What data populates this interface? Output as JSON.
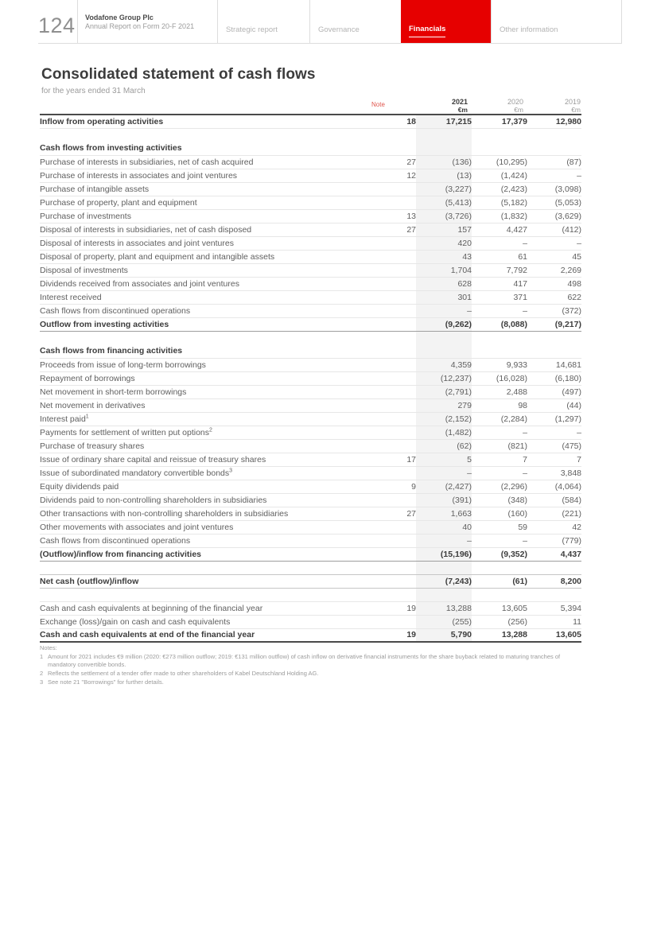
{
  "header": {
    "page_number": "124",
    "brand": {
      "line1": "Vodafone Group Plc",
      "line2": "Annual Report on Form 20-F 2021"
    },
    "tabs": [
      {
        "label": "Strategic report",
        "active": false
      },
      {
        "label": "Governance",
        "active": false
      },
      {
        "label": "Financials",
        "active": true
      },
      {
        "label": "Other information",
        "active": false
      }
    ]
  },
  "title": "Consolidated statement of cash flows",
  "subtitle": "for the years ended 31 March",
  "colors": {
    "accent_red": "#e60000",
    "note_reference_red": "#e0564d",
    "column_band_gray": "#f3f3f3"
  },
  "table": {
    "note_header": "Note",
    "columns": [
      {
        "year": "2021",
        "unit": "€m"
      },
      {
        "year": "2020",
        "unit": "€m"
      },
      {
        "year": "2019",
        "unit": "€m"
      }
    ],
    "rows": [
      {
        "label": "Inflow from operating activities",
        "note": "18",
        "v1": "17,215",
        "v2": "17,379",
        "v3": "12,980",
        "style": "bold",
        "border": "light"
      },
      {
        "style": "spacer",
        "border": "none"
      },
      {
        "label": "Cash flows from investing activities",
        "style": "section",
        "border": "light"
      },
      {
        "label": "Purchase of interests in subsidiaries, net of cash acquired",
        "note": "27",
        "v1": "(136)",
        "v2": "(10,295)",
        "v3": "(87)",
        "style": "normal",
        "border": "light"
      },
      {
        "label": "Purchase of interests in associates and joint ventures",
        "note": "12",
        "v1": "(13)",
        "v2": "(1,424)",
        "v3": "–",
        "style": "normal",
        "border": "light"
      },
      {
        "label": "Purchase of intangible assets",
        "note": "",
        "v1": "(3,227)",
        "v2": "(2,423)",
        "v3": "(3,098)",
        "style": "normal",
        "border": "light"
      },
      {
        "label": "Purchase of property, plant and equipment",
        "note": "",
        "v1": "(5,413)",
        "v2": "(5,182)",
        "v3": "(5,053)",
        "style": "normal",
        "border": "light"
      },
      {
        "label": "Purchase of investments",
        "note": "13",
        "v1": "(3,726)",
        "v2": "(1,832)",
        "v3": "(3,629)",
        "style": "normal",
        "border": "light"
      },
      {
        "label": "Disposal of interests in subsidiaries, net of cash disposed",
        "note": "27",
        "v1": "157",
        "v2": "4,427",
        "v3": "(412)",
        "style": "normal",
        "border": "light"
      },
      {
        "label": "Disposal of interests in associates and joint ventures",
        "note": "",
        "v1": "420",
        "v2": "–",
        "v3": "–",
        "style": "normal",
        "border": "light"
      },
      {
        "label": "Disposal of property, plant and equipment and intangible assets",
        "note": "",
        "v1": "43",
        "v2": "61",
        "v3": "45",
        "style": "normal",
        "border": "light"
      },
      {
        "label": "Disposal of investments",
        "note": "",
        "v1": "1,704",
        "v2": "7,792",
        "v3": "2,269",
        "style": "normal",
        "border": "light"
      },
      {
        "label": "Dividends received from associates and joint ventures",
        "note": "",
        "v1": "628",
        "v2": "417",
        "v3": "498",
        "style": "normal",
        "border": "light"
      },
      {
        "label": "Interest received",
        "note": "",
        "v1": "301",
        "v2": "371",
        "v3": "622",
        "style": "normal",
        "border": "light"
      },
      {
        "label": "Cash flows from discontinued operations",
        "note": "",
        "v1": "–",
        "v2": "–",
        "v3": "(372)",
        "style": "normal",
        "border": "light"
      },
      {
        "label": "Outflow from investing activities",
        "note": "",
        "v1": "(9,262)",
        "v2": "(8,088)",
        "v3": "(9,217)",
        "style": "bold",
        "border": "medium"
      },
      {
        "style": "spacer",
        "border": "none"
      },
      {
        "label": "Cash flows from financing activities",
        "style": "section",
        "border": "light"
      },
      {
        "label": "Proceeds from issue of long-term borrowings",
        "note": "",
        "v1": "4,359",
        "v2": "9,933",
        "v3": "14,681",
        "style": "normal",
        "border": "light"
      },
      {
        "label": "Repayment of borrowings",
        "note": "",
        "v1": "(12,237)",
        "v2": "(16,028)",
        "v3": "(6,180)",
        "style": "normal",
        "border": "light"
      },
      {
        "label": "Net movement in short-term borrowings",
        "note": "",
        "v1": "(2,791)",
        "v2": "2,488",
        "v3": "(497)",
        "style": "normal",
        "border": "light"
      },
      {
        "label": "Net movement in derivatives",
        "note": "",
        "v1": "279",
        "v2": "98",
        "v3": "(44)",
        "style": "normal",
        "border": "light"
      },
      {
        "label": "Interest paid",
        "sup": "1",
        "note": "",
        "v1": "(2,152)",
        "v2": "(2,284)",
        "v3": "(1,297)",
        "style": "normal",
        "border": "light"
      },
      {
        "label": "Payments for settlement of written put options",
        "sup": "2",
        "note": "",
        "v1": "(1,482)",
        "v2": "–",
        "v3": "–",
        "style": "normal",
        "border": "light"
      },
      {
        "label": "Purchase of treasury shares",
        "note": "",
        "v1": "(62)",
        "v2": "(821)",
        "v3": "(475)",
        "style": "normal",
        "border": "light"
      },
      {
        "label": "Issue of ordinary share capital and reissue of treasury shares",
        "note": "17",
        "v1": "5",
        "v2": "7",
        "v3": "7",
        "style": "normal",
        "border": "light"
      },
      {
        "label": "Issue of subordinated mandatory convertible bonds",
        "sup": "3",
        "note": "",
        "v1": "–",
        "v2": "–",
        "v3": "3,848",
        "style": "normal",
        "border": "light"
      },
      {
        "label": "Equity dividends paid",
        "note": "9",
        "v1": "(2,427)",
        "v2": "(2,296)",
        "v3": "(4,064)",
        "style": "normal",
        "border": "light"
      },
      {
        "label": "Dividends paid to non-controlling shareholders in subsidiaries",
        "note": "",
        "v1": "(391)",
        "v2": "(348)",
        "v3": "(584)",
        "style": "normal",
        "border": "light"
      },
      {
        "label": "Other transactions with non-controlling shareholders in subsidiaries",
        "note": "27",
        "v1": "1,663",
        "v2": "(160)",
        "v3": "(221)",
        "style": "normal",
        "border": "light"
      },
      {
        "label": "Other movements with associates and joint ventures",
        "note": "",
        "v1": "40",
        "v2": "59",
        "v3": "42",
        "style": "normal",
        "border": "light"
      },
      {
        "label": "Cash flows from discontinued operations",
        "note": "",
        "v1": "–",
        "v2": "–",
        "v3": "(779)",
        "style": "normal",
        "border": "light"
      },
      {
        "label": "(Outflow)/inflow from financing activities",
        "note": "",
        "v1": "(15,196)",
        "v2": "(9,352)",
        "v3": "4,437",
        "style": "bold",
        "border": "medium"
      },
      {
        "style": "spacer",
        "border": "mlight"
      },
      {
        "label": "Net cash (outflow)/inflow",
        "note": "",
        "v1": "(7,243)",
        "v2": "(61)",
        "v3": "8,200",
        "style": "bold",
        "border": "mlight"
      },
      {
        "style": "spacer",
        "border": "light"
      },
      {
        "label": "Cash and cash equivalents at beginning of the financial year",
        "note": "19",
        "v1": "13,288",
        "v2": "13,605",
        "v3": "5,394",
        "style": "normal",
        "border": "light"
      },
      {
        "label": "Exchange (loss)/gain on cash and cash equivalents",
        "note": "",
        "v1": "(255)",
        "v2": "(256)",
        "v3": "11",
        "style": "normal",
        "border": "light"
      },
      {
        "label": "Cash and cash equivalents at end of the financial year",
        "note": "19",
        "v1": "5,790",
        "v2": "13,288",
        "v3": "13,605",
        "style": "bold",
        "border": "dark"
      }
    ]
  },
  "notes": {
    "heading": "Notes:",
    "items": [
      {
        "num": "1",
        "text": "Amount for 2021 includes €9 million (2020: €273 million outflow; 2019: €131 million outflow) of cash inflow on derivative financial instruments for the share buyback related to maturing tranches of mandatory convertible bonds."
      },
      {
        "num": "2",
        "text": "Reflects the settlement of a tender offer made to other shareholders of Kabel Deutschland Holding AG."
      },
      {
        "num": "3",
        "text": "See note 21 \"Borrowings\" for further details."
      }
    ]
  }
}
